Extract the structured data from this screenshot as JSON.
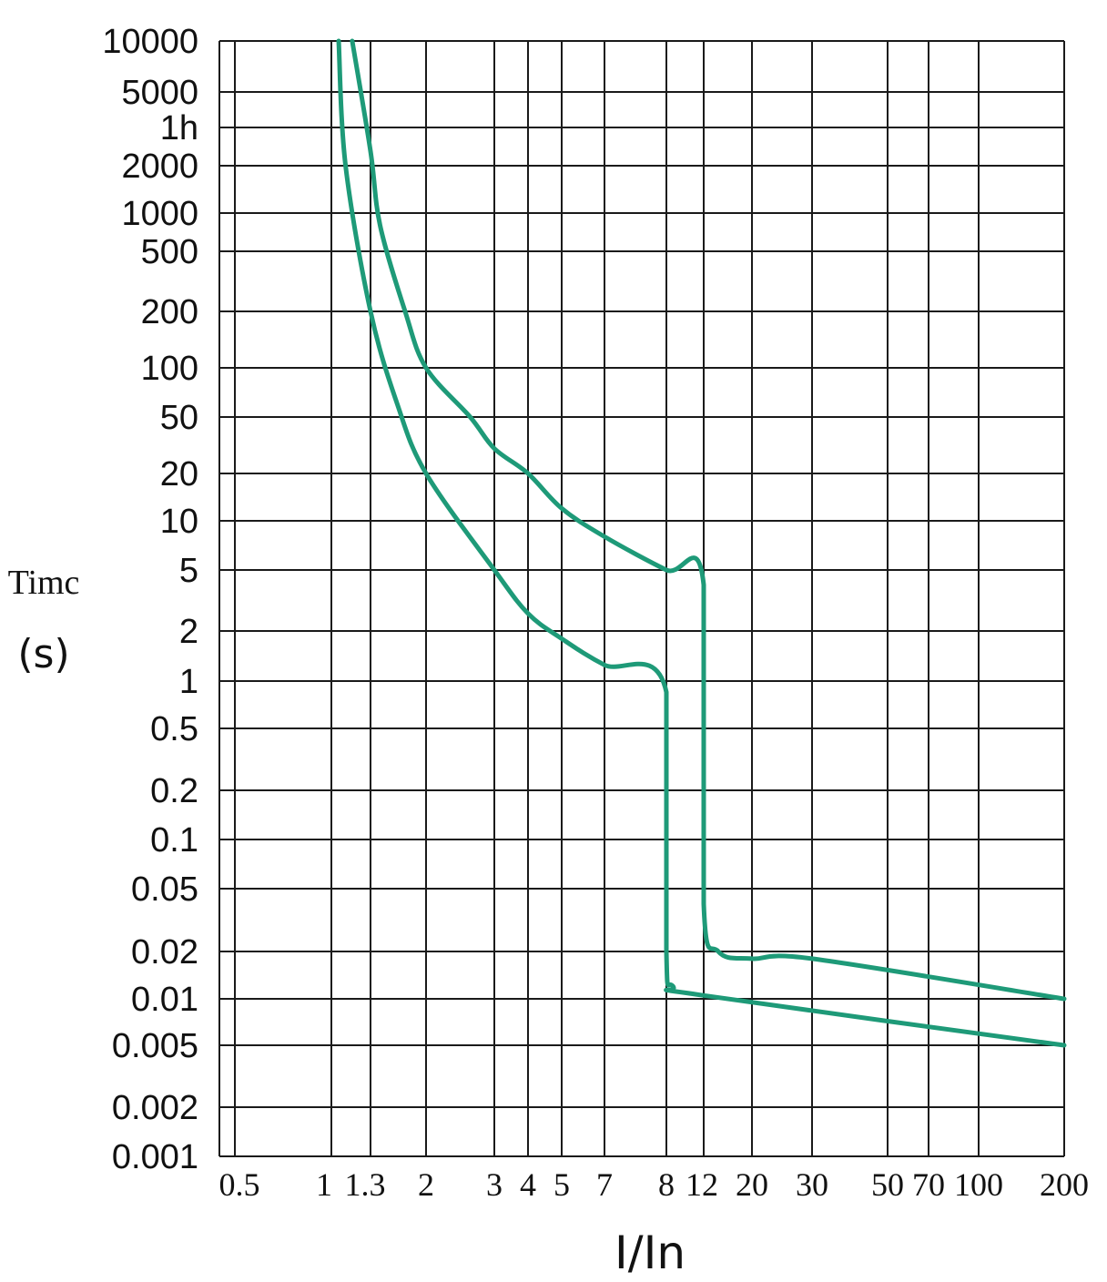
{
  "chart_data": {
    "type": "line",
    "title": "",
    "xlabel": "I/In",
    "ylabel": [
      "Timc",
      "(s)"
    ],
    "x_scale": "log",
    "y_scale": "log",
    "grid": true,
    "x_ticks": [
      {
        "label": "0.5",
        "value": 0.5
      },
      {
        "label": "1",
        "value": 1
      },
      {
        "label": "1.3",
        "value": 1.3
      },
      {
        "label": "2",
        "value": 2
      },
      {
        "label": "3",
        "value": 3
      },
      {
        "label": "4",
        "value": 4
      },
      {
        "label": "5",
        "value": 5
      },
      {
        "label": "7",
        "value": 7
      },
      {
        "label": "8",
        "value": 8
      },
      {
        "label": "12",
        "value": 12
      },
      {
        "label": "20",
        "value": 20
      },
      {
        "label": "30",
        "value": 30
      },
      {
        "label": "50",
        "value": 50
      },
      {
        "label": "70",
        "value": 70
      },
      {
        "label": "100",
        "value": 100
      },
      {
        "label": "200",
        "value": 200
      }
    ],
    "y_ticks": [
      {
        "label": "10000",
        "value": 10000
      },
      {
        "label": "5000",
        "value": 5000
      },
      {
        "label": "1h",
        "value": 3600
      },
      {
        "label": "2000",
        "value": 2000
      },
      {
        "label": "1000",
        "value": 1000
      },
      {
        "label": "500",
        "value": 500
      },
      {
        "label": "200",
        "value": 200
      },
      {
        "label": "100",
        "value": 100
      },
      {
        "label": "50",
        "value": 50
      },
      {
        "label": "20",
        "value": 20
      },
      {
        "label": "10",
        "value": 10
      },
      {
        "label": "5",
        "value": 5
      },
      {
        "label": "2",
        "value": 2
      },
      {
        "label": "1",
        "value": 1
      },
      {
        "label": "0.5",
        "value": 0.5
      },
      {
        "label": "0.2",
        "value": 0.2
      },
      {
        "label": "0.1",
        "value": 0.1
      },
      {
        "label": "0.05",
        "value": 0.05
      },
      {
        "label": "0.02",
        "value": 0.02
      },
      {
        "label": "0.01",
        "value": 0.01
      },
      {
        "label": "0.005",
        "value": 0.005
      },
      {
        "label": "0.002",
        "value": 0.002
      },
      {
        "label": "0.001",
        "value": 0.001
      }
    ],
    "series": [
      {
        "color": "#1e9a78",
        "points": [
          [
            1.05,
            10000
          ],
          [
            1.1,
            2000
          ],
          [
            1.3,
            200
          ],
          [
            1.6,
            60
          ],
          [
            2,
            20
          ],
          [
            3,
            5
          ],
          [
            4,
            2.6
          ],
          [
            5,
            1.8
          ],
          [
            7,
            1.25
          ],
          [
            8,
            0.85
          ],
          [
            8,
            0.02
          ],
          [
            8.6,
            0.012
          ],
          [
            12,
            0.0105
          ],
          [
            200,
            0.005
          ]
        ]
      },
      {
        "color": "#1e9a78",
        "points": [
          [
            1.15,
            10000
          ],
          [
            1.3,
            2500
          ],
          [
            1.4,
            800
          ],
          [
            1.7,
            200
          ],
          [
            2,
            100
          ],
          [
            2.6,
            50
          ],
          [
            3,
            30
          ],
          [
            4,
            20
          ],
          [
            5,
            12
          ],
          [
            7,
            8
          ],
          [
            8,
            5
          ],
          [
            12,
            4
          ],
          [
            12,
            0.04
          ],
          [
            14,
            0.02
          ],
          [
            20,
            0.018
          ],
          [
            30,
            0.018
          ],
          [
            200,
            0.01
          ]
        ]
      }
    ]
  }
}
